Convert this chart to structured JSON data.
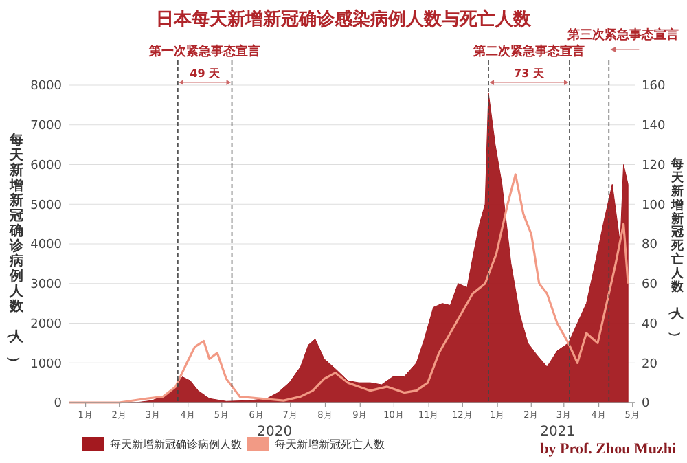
{
  "chart_data": {
    "type": "area",
    "title": "日本每天新增新冠确诊感染病例人数与死亡人数",
    "ylabel": "每天新增新冠确诊病例人数（人）",
    "y2label": "每天新增新冠死亡人数（人）",
    "series": [
      {
        "name": "每天新增新冠确诊病例人数",
        "color": "#a3191f",
        "x": [
          "2020-01-01",
          "2020-02-01",
          "2020-03-01",
          "2020-03-15",
          "2020-03-28",
          "2020-04-05",
          "2020-04-11",
          "2020-04-18",
          "2020-04-25",
          "2020-05-05",
          "2020-05-20",
          "2020-06-10",
          "2020-06-25",
          "2020-07-05",
          "2020-07-15",
          "2020-07-25",
          "2020-08-01",
          "2020-08-07",
          "2020-08-15",
          "2020-08-25",
          "2020-09-05",
          "2020-09-15",
          "2020-09-25",
          "2020-10-05",
          "2020-10-15",
          "2020-10-25",
          "2020-11-05",
          "2020-11-12",
          "2020-11-20",
          "2020-11-28",
          "2020-12-05",
          "2020-12-12",
          "2020-12-20",
          "2020-12-26",
          "2020-12-31",
          "2021-01-05",
          "2021-01-08",
          "2021-01-14",
          "2021-01-20",
          "2021-01-28",
          "2021-02-05",
          "2021-02-12",
          "2021-02-20",
          "2021-03-01",
          "2021-03-10",
          "2021-03-20",
          "2021-03-28",
          "2021-04-05",
          "2021-04-12",
          "2021-04-20",
          "2021-04-28",
          "2021-05-05",
          "2021-05-08",
          "2021-05-12"
        ],
        "values": [
          0,
          0,
          0,
          50,
          200,
          400,
          650,
          550,
          300,
          100,
          30,
          50,
          100,
          250,
          500,
          900,
          1450,
          1600,
          1100,
          850,
          550,
          500,
          500,
          450,
          650,
          650,
          1000,
          1600,
          2400,
          2500,
          2450,
          3000,
          2900,
          3800,
          4500,
          5000,
          7800,
          6500,
          5500,
          3500,
          2200,
          1500,
          1200,
          900,
          1300,
          1500,
          2000,
          2500,
          3400,
          4500,
          5500,
          4000,
          6000,
          5500
        ]
      },
      {
        "name": "每天新增新冠死亡人数",
        "color": "#f29a85",
        "type": "line",
        "axis": "y2",
        "x": [
          "2020-01-01",
          "2020-02-15",
          "2020-03-10",
          "2020-03-25",
          "2020-04-05",
          "2020-04-15",
          "2020-04-22",
          "2020-04-30",
          "2020-05-05",
          "2020-05-12",
          "2020-05-20",
          "2020-06-01",
          "2020-06-20",
          "2020-07-10",
          "2020-07-25",
          "2020-08-05",
          "2020-08-15",
          "2020-08-25",
          "2020-09-05",
          "2020-09-15",
          "2020-09-25",
          "2020-10-10",
          "2020-10-25",
          "2020-11-05",
          "2020-11-15",
          "2020-11-25",
          "2020-12-05",
          "2020-12-15",
          "2020-12-25",
          "2021-01-05",
          "2021-01-15",
          "2021-01-25",
          "2021-02-01",
          "2021-02-08",
          "2021-02-15",
          "2021-02-22",
          "2021-03-01",
          "2021-03-10",
          "2021-03-20",
          "2021-03-28",
          "2021-04-05",
          "2021-04-15",
          "2021-04-25",
          "2021-05-01",
          "2021-05-08",
          "2021-05-12"
        ],
        "values": [
          0,
          0,
          2,
          3,
          8,
          20,
          28,
          31,
          22,
          25,
          12,
          3,
          2,
          1,
          3,
          6,
          12,
          15,
          10,
          8,
          6,
          8,
          5,
          6,
          10,
          25,
          35,
          45,
          55,
          60,
          75,
          100,
          115,
          95,
          85,
          60,
          55,
          40,
          30,
          20,
          35,
          30,
          55,
          70,
          90,
          60
        ]
      }
    ],
    "xlim": [
      "2020-01-01",
      "2021-05-18"
    ],
    "xticks": [
      {
        "value": "2020-01-16",
        "label": "1月"
      },
      {
        "value": "2020-02-15",
        "label": "2月"
      },
      {
        "value": "2020-03-16",
        "label": "3月"
      },
      {
        "value": "2020-04-16",
        "label": "4月"
      },
      {
        "value": "2020-05-16",
        "label": "5月"
      },
      {
        "value": "2020-06-16",
        "label": "6月"
      },
      {
        "value": "2020-07-16",
        "label": "7月"
      },
      {
        "value": "2020-08-16",
        "label": "8月"
      },
      {
        "value": "2020-09-16",
        "label": "9月"
      },
      {
        "value": "2020-10-16",
        "label": "10月"
      },
      {
        "value": "2020-11-16",
        "label": "11月"
      },
      {
        "value": "2020-12-16",
        "label": "12月"
      },
      {
        "value": "2021-01-16",
        "label": "1月"
      },
      {
        "value": "2021-02-15",
        "label": "2月"
      },
      {
        "value": "2021-03-16",
        "label": "3月"
      },
      {
        "value": "2021-04-16",
        "label": "4月"
      },
      {
        "value": "2021-05-16",
        "label": "5月"
      }
    ],
    "ylim": [
      0,
      8000
    ],
    "yticks": [
      0,
      1000,
      2000,
      3000,
      4000,
      5000,
      6000,
      7000,
      8000
    ],
    "y2lim": [
      0,
      160
    ],
    "y2ticks": [
      0,
      20,
      40,
      60,
      80,
      100,
      120,
      140,
      160
    ],
    "grid": "y",
    "legend": "bottom",
    "ref_lines": [
      {
        "axis": "x",
        "value": "2020-04-07",
        "label": "第一次紧急事态宣言",
        "line_style": "dashed",
        "color": "#444444"
      },
      {
        "axis": "x",
        "value": "2020-05-25",
        "line_style": "dashed",
        "color": "#444444"
      },
      {
        "axis": "x",
        "value": "2021-01-08",
        "label": "第二次紧急事态宣言",
        "line_style": "dashed",
        "color": "#444444"
      },
      {
        "axis": "x",
        "value": "2021-03-21",
        "line_style": "dashed",
        "color": "#444444"
      },
      {
        "axis": "x",
        "value": "2021-04-25",
        "label": "第三次紧急事态宣言",
        "line_style": "dashed",
        "color": "#444444"
      }
    ],
    "annotations": [
      "49 天",
      "73 天",
      "2020",
      "2021",
      "by Prof. Zhou Muzhi"
    ]
  }
}
